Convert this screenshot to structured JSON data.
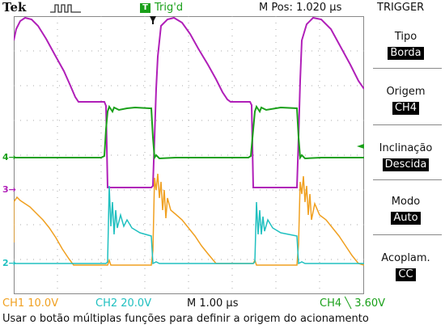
{
  "header": {
    "brand": "Tek",
    "trigger_state_badge": "T",
    "trigger_state": "Trig'd",
    "horizontal_position": "M Pos: 1.020 µs",
    "menu_title": "TRIGGER"
  },
  "trigger_menu": {
    "items": [
      {
        "label": "Tipo",
        "value": "Borda"
      },
      {
        "label": "Origem",
        "value": "CH4"
      },
      {
        "label": "Inclinação",
        "value": "Descida"
      },
      {
        "label": "Modo",
        "value": "Auto"
      },
      {
        "label": "Acoplam.",
        "value": "CC"
      }
    ]
  },
  "channel_markers": {
    "ch4": "4",
    "ch3": "3",
    "ch2": "2"
  },
  "status_bar": {
    "ch1": "CH1  10.0V",
    "ch2": "CH2  20.0V",
    "timebase": "M 1.00 µs",
    "trigger": "CH4 ╲ 3.60V"
  },
  "message": "Usar o botão múltiplas funções para definir a origem do acionamento",
  "colors": {
    "ch1": "#f0a020",
    "ch2": "#20c0c0",
    "ch3": "#b01fb8",
    "ch4": "#1aa01a",
    "grid": "#999999"
  }
}
